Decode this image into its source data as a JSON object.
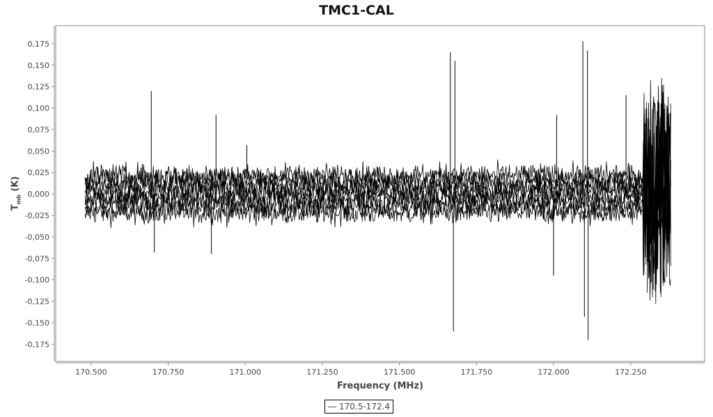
{
  "chart_data": {
    "type": "line",
    "title": "TMC1-CAL",
    "xlabel": "Frequency (MHz)",
    "ylabel_main": "T",
    "ylabel_sub": "mb",
    "ylabel_unit": "(K)",
    "xlim": [
      170.385,
      172.49
    ],
    "ylim": [
      -0.195,
      0.196
    ],
    "x_ticks": [
      "170.500",
      "170.750",
      "171.000",
      "171.250",
      "171.500",
      "171.750",
      "172.000",
      "172.250"
    ],
    "x_tick_values": [
      170.5,
      170.75,
      171.0,
      171.25,
      171.5,
      171.75,
      172.0,
      172.25
    ],
    "y_ticks": [
      "0,175",
      "0,150",
      "0,125",
      "0,100",
      "0,075",
      "0,050",
      "0,025",
      "0,000",
      "-0,025",
      "-0,050",
      "-0,075",
      "-0,100",
      "-0,125",
      "-0,150",
      "-0,175"
    ],
    "y_tick_values": [
      0.175,
      0.15,
      0.125,
      0.1,
      0.075,
      0.05,
      0.025,
      0,
      -0.025,
      -0.05,
      -0.075,
      -0.1,
      -0.125,
      -0.15,
      -0.175
    ],
    "grid": false,
    "legend_placement": "bottom-center",
    "series": [
      {
        "name": "170.5-172.4",
        "color": "#000000",
        "x_range": [
          170.48,
          172.38
        ],
        "noise_rms": 0.012,
        "spikes": [
          {
            "x": 170.695,
            "y": 0.12
          },
          {
            "x": 170.705,
            "y": -0.068
          },
          {
            "x": 170.89,
            "y": -0.07
          },
          {
            "x": 170.905,
            "y": 0.092
          },
          {
            "x": 171.005,
            "y": 0.057
          },
          {
            "x": 171.665,
            "y": 0.165
          },
          {
            "x": 171.675,
            "y": -0.16
          },
          {
            "x": 171.68,
            "y": 0.155
          },
          {
            "x": 172.0,
            "y": -0.095
          },
          {
            "x": 172.01,
            "y": 0.092
          },
          {
            "x": 172.095,
            "y": 0.178
          },
          {
            "x": 172.1,
            "y": -0.143
          },
          {
            "x": 172.11,
            "y": 0.167
          },
          {
            "x": 172.112,
            "y": -0.17
          },
          {
            "x": 172.235,
            "y": 0.115
          }
        ],
        "high_noise_region": {
          "x_range": [
            172.29,
            172.38
          ],
          "amplitude": 0.15
        }
      }
    ]
  }
}
